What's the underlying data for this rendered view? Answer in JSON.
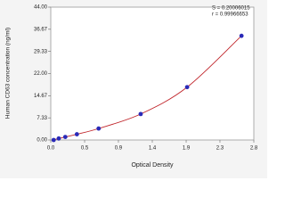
{
  "chart_data": {
    "type": "scatter",
    "annotations": [
      "S = 0.20006015",
      "r = 0.99966653"
    ],
    "xlabel": "Optical Density",
    "ylabel": "Human CD63 concentration (ng/ml)",
    "x": [
      0.04,
      0.11,
      0.2,
      0.36,
      0.66,
      1.24,
      1.88,
      2.63
    ],
    "series": [
      {
        "color": "#2a2ab8",
        "values": [
          0,
          0.5,
          1,
          1.9,
          3.8,
          8.6,
          17.5,
          34.5
        ]
      }
    ],
    "fit_color": "#c0242a",
    "xlim": [
      0,
      2.8
    ],
    "xticks": [
      {
        "value": 0,
        "label": "0.0"
      },
      {
        "value": 0.467,
        "label": "0.5"
      },
      {
        "value": 0.933,
        "label": "0.9"
      },
      1.4,
      {
        "value": 1.867,
        "label": "1.9"
      },
      {
        "value": 2.333,
        "label": "2.3"
      },
      2.8
    ],
    "ylim": [
      0,
      44
    ],
    "yticks": [
      {
        "value": 0,
        "label": "0.00"
      },
      7.33,
      14.67,
      {
        "value": 22,
        "label": "22.00"
      },
      29.33,
      36.67,
      {
        "value": 44,
        "label": "44.00"
      }
    ],
    "grid": false
  }
}
